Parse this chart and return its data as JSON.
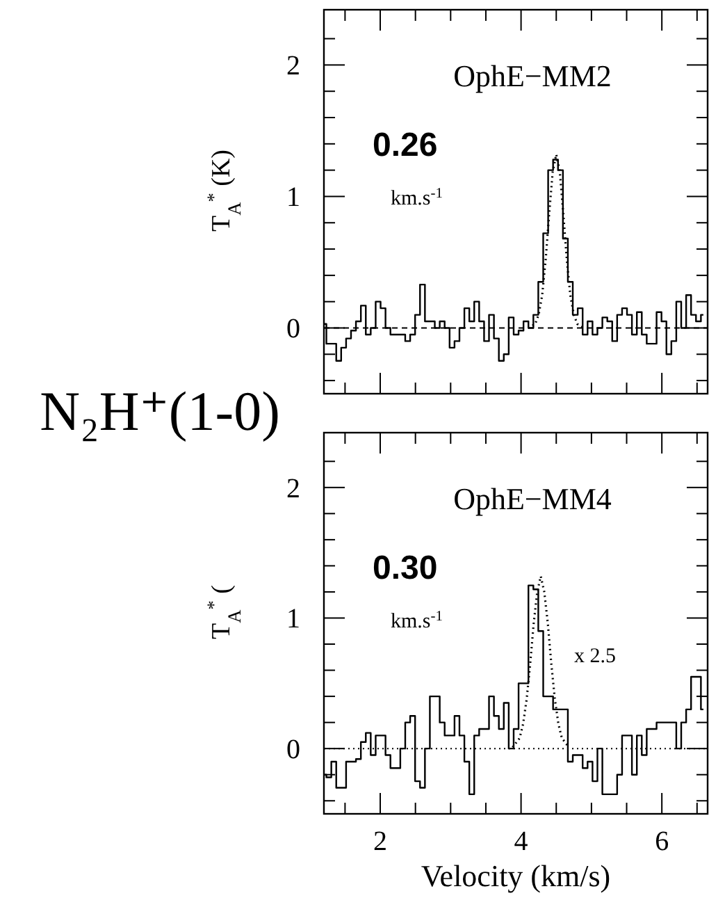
{
  "chart_data": [
    {
      "type": "step",
      "title": "N₂H⁺(1-0)",
      "ylabel": "T$_{A}$$^{*}$ (K)",
      "tick_labels": "y",
      "annotations": [
        "OphE−MM2",
        "0.26",
        "km.s$^{-1}$"
      ],
      "xlim": [
        1.2,
        6.65
      ],
      "ylim": [
        -0.5,
        2.42
      ],
      "xticks": [
        {
          "value": 1.5,
          "label": null
        },
        2,
        {
          "value": 2.5,
          "label": null
        },
        {
          "value": 3,
          "label": null
        },
        {
          "value": 3.5,
          "label": null
        },
        4,
        {
          "value": 4.5,
          "label": null
        },
        {
          "value": 5,
          "label": null
        },
        {
          "value": 5.5,
          "label": null
        },
        6,
        {
          "value": 6.5,
          "label": null
        }
      ],
      "yticks": [
        {
          "value": -0.4,
          "label": null
        },
        {
          "value": -0.2,
          "label": null
        },
        0,
        {
          "value": 0.2,
          "label": null
        },
        {
          "value": 0.4,
          "label": null
        },
        {
          "value": 0.6,
          "label": null
        },
        {
          "value": 0.8,
          "label": null
        },
        1,
        {
          "value": 1.2,
          "label": null
        },
        {
          "value": 1.4,
          "label": null
        },
        {
          "value": 1.6,
          "label": null
        },
        {
          "value": 1.8,
          "label": null
        },
        2,
        {
          "value": 2.2,
          "label": null
        }
      ],
      "ref_lines": [
        {
          "axis": "y",
          "value": 0,
          "line_style": "dashed",
          "color": "#000000"
        }
      ],
      "series": [
        {
          "color": "#000000",
          "line_style": "solid",
          "x": [
            1.2,
            1.27,
            1.34,
            1.41,
            1.48,
            1.55,
            1.62,
            1.69,
            1.76,
            1.83,
            1.9,
            1.97,
            2.04,
            2.11,
            2.18,
            2.25,
            2.32,
            2.39,
            2.46,
            2.53,
            2.6,
            2.67,
            2.74,
            2.81,
            2.88,
            2.95,
            3.02,
            3.09,
            3.16,
            3.23,
            3.3,
            3.37,
            3.44,
            3.51,
            3.58,
            3.65,
            3.72,
            3.79,
            3.86,
            3.93,
            4.0,
            4.07,
            4.14,
            4.21,
            4.28,
            4.35,
            4.42,
            4.49,
            4.56,
            4.63,
            4.7,
            4.77,
            4.84,
            4.91,
            4.98,
            5.05,
            5.12,
            5.19,
            5.26,
            5.33,
            5.4,
            5.47,
            5.54,
            5.61,
            5.68,
            5.75,
            5.82,
            5.89,
            5.96,
            6.03,
            6.1,
            6.17,
            6.24,
            6.31,
            6.38,
            6.45,
            6.52,
            6.59
          ],
          "values": [
            0.03,
            -0.12,
            -0.12,
            -0.25,
            -0.15,
            -0.08,
            -0.02,
            0.05,
            0.17,
            -0.05,
            0.0,
            0.2,
            0.15,
            0.0,
            -0.05,
            -0.05,
            -0.05,
            -0.1,
            -0.05,
            0.1,
            0.33,
            0.05,
            0.05,
            0.0,
            0.05,
            0.0,
            -0.15,
            -0.1,
            0.0,
            0.15,
            0.05,
            0.2,
            0.05,
            -0.1,
            0.1,
            -0.08,
            -0.25,
            -0.2,
            0.08,
            -0.05,
            -0.02,
            0.05,
            0.0,
            0.1,
            0.35,
            0.72,
            1.2,
            1.28,
            1.2,
            0.68,
            0.35,
            0.1,
            0.15,
            -0.05,
            0.05,
            -0.05,
            0.0,
            0.08,
            0.05,
            -0.1,
            0.1,
            0.15,
            0.1,
            -0.05,
            0.12,
            -0.05,
            -0.12,
            -0.12,
            0.12,
            0.05,
            -0.2,
            -0.1,
            0.2,
            0.0,
            0.25,
            0.1,
            0.05,
            0.1
          ]
        },
        {
          "type": "line",
          "color": "#000000",
          "line_style": "dotted",
          "x": [
            4.1,
            4.2,
            4.25,
            4.3,
            4.35,
            4.4,
            4.45,
            4.5,
            4.55,
            4.6,
            4.65,
            4.7,
            4.75,
            4.8,
            4.9
          ],
          "values": [
            0.0,
            0.03,
            0.1,
            0.25,
            0.52,
            0.87,
            1.19,
            1.32,
            1.19,
            0.87,
            0.52,
            0.25,
            0.1,
            0.03,
            0.0
          ]
        }
      ]
    },
    {
      "type": "step",
      "xlabel": "Velocity (km/s)",
      "ylabel": "T$_{A}$$^{*}$ (",
      "annotations": [
        "OphE−MM4",
        "0.30",
        "km.s$^{-1}$",
        "x 2.5"
      ],
      "xlim": [
        1.2,
        6.65
      ],
      "ylim": [
        -0.5,
        2.42
      ],
      "xticks": [
        {
          "value": 1.5,
          "label": null
        },
        2,
        {
          "value": 2.5,
          "label": null
        },
        {
          "value": 3,
          "label": null
        },
        {
          "value": 3.5,
          "label": null
        },
        4,
        {
          "value": 4.5,
          "label": null
        },
        {
          "value": 5,
          "label": null
        },
        {
          "value": 5.5,
          "label": null
        },
        6,
        {
          "value": 6.5,
          "label": null
        }
      ],
      "yticks": [
        {
          "value": -0.4,
          "label": null
        },
        {
          "value": -0.2,
          "label": null
        },
        0,
        {
          "value": 0.2,
          "label": null
        },
        {
          "value": 0.4,
          "label": null
        },
        {
          "value": 0.6,
          "label": null
        },
        {
          "value": 0.8,
          "label": null
        },
        1,
        {
          "value": 1.2,
          "label": null
        },
        {
          "value": 1.4,
          "label": null
        },
        {
          "value": 1.6,
          "label": null
        },
        {
          "value": 1.8,
          "label": null
        },
        2,
        {
          "value": 2.2,
          "label": null
        }
      ],
      "ref_lines": [
        {
          "axis": "y",
          "value": 0,
          "line_style": "dotted",
          "color": "#000000"
        }
      ],
      "series": [
        {
          "color": "#000000",
          "line_style": "solid",
          "x": [
            1.2,
            1.27,
            1.34,
            1.41,
            1.48,
            1.55,
            1.62,
            1.69,
            1.76,
            1.83,
            1.9,
            1.97,
            2.04,
            2.11,
            2.18,
            2.25,
            2.32,
            2.39,
            2.46,
            2.53,
            2.6,
            2.67,
            2.74,
            2.81,
            2.88,
            2.95,
            3.02,
            3.09,
            3.16,
            3.23,
            3.3,
            3.37,
            3.44,
            3.51,
            3.58,
            3.65,
            3.72,
            3.79,
            3.86,
            3.93,
            4.0,
            4.07,
            4.14,
            4.21,
            4.28,
            4.35,
            4.42,
            4.49,
            4.56,
            4.63,
            4.7,
            4.77,
            4.84,
            4.91,
            4.98,
            5.05,
            5.12,
            5.19,
            5.26,
            5.33,
            5.4,
            5.47,
            5.54,
            5.61,
            5.68,
            5.75,
            5.82,
            5.89,
            5.96,
            6.03,
            6.1,
            6.17,
            6.24,
            6.31,
            6.38,
            6.45,
            6.52,
            6.59
          ],
          "values": [
            -0.2,
            -0.22,
            -0.1,
            -0.3,
            -0.3,
            -0.1,
            -0.1,
            -0.08,
            0.05,
            0.12,
            -0.05,
            0.1,
            0.1,
            -0.05,
            -0.15,
            -0.15,
            0.0,
            0.2,
            0.25,
            -0.25,
            -0.3,
            0.0,
            0.4,
            0.4,
            0.2,
            0.1,
            0.1,
            0.25,
            0.1,
            -0.1,
            -0.35,
            0.1,
            0.15,
            0.15,
            0.4,
            0.25,
            0.15,
            0.35,
            0.0,
            0.15,
            0.5,
            0.5,
            1.25,
            1.22,
            0.9,
            0.4,
            0.4,
            0.3,
            0.3,
            0.3,
            -0.1,
            -0.05,
            -0.05,
            -0.15,
            -0.1,
            -0.25,
            0.0,
            -0.35,
            -0.35,
            -0.35,
            -0.2,
            0.1,
            0.1,
            -0.2,
            0.1,
            -0.05,
            0.15,
            0.15,
            0.2,
            0.2,
            0.2,
            0.2,
            0.0,
            0.2,
            0.3,
            0.55,
            0.55,
            0.3
          ]
        },
        {
          "type": "line",
          "color": "#000000",
          "line_style": "dotted",
          "x": [
            3.88,
            3.98,
            4.03,
            4.08,
            4.13,
            4.18,
            4.23,
            4.28,
            4.33,
            4.38,
            4.43,
            4.48,
            4.53,
            4.58,
            4.68
          ],
          "values": [
            0.01,
            0.08,
            0.19,
            0.38,
            0.65,
            0.96,
            1.2,
            1.32,
            1.2,
            0.96,
            0.65,
            0.38,
            0.19,
            0.08,
            0.01
          ]
        }
      ]
    }
  ]
}
